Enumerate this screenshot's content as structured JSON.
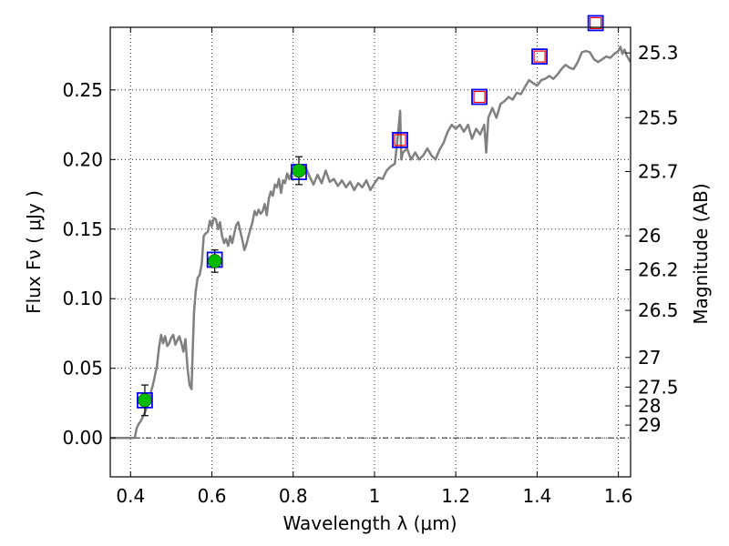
{
  "chart_data": {
    "type": "scatter",
    "title": "",
    "xlabel": "Wavelength  λ (μm)",
    "ylabel_left": "Flux  Fν  ( μJy )",
    "ylabel_right": "Magnitude (AB)",
    "xlim": [
      0.35,
      1.63
    ],
    "ylim": [
      -0.028,
      0.295
    ],
    "grid": true,
    "x_ticks": [
      0.4,
      0.6,
      0.8,
      1.0,
      1.2,
      1.4,
      1.6
    ],
    "x_tick_labels": [
      "0.4",
      "0.6",
      "0.8",
      "1",
      "1.2",
      "1.4",
      "1.6"
    ],
    "y_ticks": [
      0.0,
      0.05,
      0.1,
      0.15,
      0.2,
      0.25
    ],
    "y_tick_labels": [
      "0.00",
      "0.05",
      "0.10",
      "0.15",
      "0.20",
      "0.25"
    ],
    "right_ticks": [
      {
        "label": "25.3",
        "flux": 0.2766
      },
      {
        "label": "25.5",
        "flux": 0.2301
      },
      {
        "label": "25.7",
        "flux": 0.1914
      },
      {
        "label": "26",
        "flux": 0.1452
      },
      {
        "label": "26.2",
        "flux": 0.1208
      },
      {
        "label": "26.5",
        "flux": 0.0916
      },
      {
        "label": "27",
        "flux": 0.0578
      },
      {
        "label": "27.5",
        "flux": 0.0365
      },
      {
        "label": "28",
        "flux": 0.023
      },
      {
        "label": "29",
        "flux": 0.0092
      }
    ],
    "series": [
      {
        "kind": "model-spectrum",
        "color": "#808080",
        "points": [
          [
            0.35,
            0.0
          ],
          [
            0.41,
            0.0
          ],
          [
            0.415,
            0.007
          ],
          [
            0.42,
            0.01
          ],
          [
            0.425,
            0.012
          ],
          [
            0.43,
            0.015
          ],
          [
            0.435,
            0.018
          ],
          [
            0.44,
            0.022
          ],
          [
            0.445,
            0.026
          ],
          [
            0.45,
            0.033
          ],
          [
            0.455,
            0.038
          ],
          [
            0.46,
            0.045
          ],
          [
            0.465,
            0.052
          ],
          [
            0.47,
            0.065
          ],
          [
            0.475,
            0.074
          ],
          [
            0.48,
            0.068
          ],
          [
            0.485,
            0.073
          ],
          [
            0.49,
            0.066
          ],
          [
            0.495,
            0.068
          ],
          [
            0.5,
            0.072
          ],
          [
            0.505,
            0.074
          ],
          [
            0.51,
            0.067
          ],
          [
            0.515,
            0.07
          ],
          [
            0.52,
            0.073
          ],
          [
            0.525,
            0.068
          ],
          [
            0.53,
            0.062
          ],
          [
            0.535,
            0.071
          ],
          [
            0.54,
            0.05
          ],
          [
            0.545,
            0.038
          ],
          [
            0.55,
            0.035
          ],
          [
            0.553,
            0.065
          ],
          [
            0.556,
            0.09
          ],
          [
            0.56,
            0.105
          ],
          [
            0.565,
            0.115
          ],
          [
            0.57,
            0.117
          ],
          [
            0.575,
            0.125
          ],
          [
            0.58,
            0.145
          ],
          [
            0.585,
            0.147
          ],
          [
            0.59,
            0.148
          ],
          [
            0.595,
            0.156
          ],
          [
            0.6,
            0.152
          ],
          [
            0.605,
            0.158
          ],
          [
            0.61,
            0.157
          ],
          [
            0.615,
            0.15
          ],
          [
            0.62,
            0.155
          ],
          [
            0.625,
            0.145
          ],
          [
            0.63,
            0.14
          ],
          [
            0.635,
            0.143
          ],
          [
            0.64,
            0.138
          ],
          [
            0.645,
            0.145
          ],
          [
            0.65,
            0.14
          ],
          [
            0.655,
            0.147
          ],
          [
            0.66,
            0.153
          ],
          [
            0.665,
            0.155
          ],
          [
            0.67,
            0.148
          ],
          [
            0.675,
            0.142
          ],
          [
            0.68,
            0.135
          ],
          [
            0.685,
            0.139
          ],
          [
            0.69,
            0.145
          ],
          [
            0.695,
            0.15
          ],
          [
            0.7,
            0.155
          ],
          [
            0.705,
            0.163
          ],
          [
            0.71,
            0.16
          ],
          [
            0.715,
            0.164
          ],
          [
            0.72,
            0.161
          ],
          [
            0.725,
            0.163
          ],
          [
            0.73,
            0.168
          ],
          [
            0.735,
            0.16
          ],
          [
            0.74,
            0.172
          ],
          [
            0.745,
            0.177
          ],
          [
            0.75,
            0.174
          ],
          [
            0.755,
            0.182
          ],
          [
            0.76,
            0.18
          ],
          [
            0.765,
            0.186
          ],
          [
            0.77,
            0.176
          ],
          [
            0.775,
            0.185
          ],
          [
            0.78,
            0.183
          ],
          [
            0.785,
            0.19
          ],
          [
            0.79,
            0.186
          ],
          [
            0.8,
            0.193
          ],
          [
            0.81,
            0.19
          ],
          [
            0.82,
            0.192
          ],
          [
            0.83,
            0.195
          ],
          [
            0.84,
            0.188
          ],
          [
            0.85,
            0.182
          ],
          [
            0.86,
            0.189
          ],
          [
            0.87,
            0.183
          ],
          [
            0.88,
            0.192
          ],
          [
            0.89,
            0.184
          ],
          [
            0.9,
            0.186
          ],
          [
            0.91,
            0.181
          ],
          [
            0.92,
            0.185
          ],
          [
            0.93,
            0.18
          ],
          [
            0.94,
            0.184
          ],
          [
            0.95,
            0.178
          ],
          [
            0.96,
            0.183
          ],
          [
            0.97,
            0.18
          ],
          [
            0.98,
            0.185
          ],
          [
            0.99,
            0.178
          ],
          [
            1.0,
            0.183
          ],
          [
            1.01,
            0.187
          ],
          [
            1.02,
            0.186
          ],
          [
            1.03,
            0.192
          ],
          [
            1.04,
            0.195
          ],
          [
            1.05,
            0.197
          ],
          [
            1.055,
            0.21
          ],
          [
            1.06,
            0.225
          ],
          [
            1.063,
            0.235
          ],
          [
            1.066,
            0.2
          ],
          [
            1.07,
            0.205
          ],
          [
            1.08,
            0.208
          ],
          [
            1.09,
            0.2
          ],
          [
            1.1,
            0.205
          ],
          [
            1.11,
            0.2
          ],
          [
            1.12,
            0.203
          ],
          [
            1.13,
            0.208
          ],
          [
            1.14,
            0.203
          ],
          [
            1.15,
            0.2
          ],
          [
            1.16,
            0.207
          ],
          [
            1.17,
            0.212
          ],
          [
            1.18,
            0.22
          ],
          [
            1.19,
            0.225
          ],
          [
            1.2,
            0.222
          ],
          [
            1.21,
            0.225
          ],
          [
            1.22,
            0.22
          ],
          [
            1.23,
            0.225
          ],
          [
            1.24,
            0.215
          ],
          [
            1.25,
            0.222
          ],
          [
            1.26,
            0.218
          ],
          [
            1.27,
            0.225
          ],
          [
            1.275,
            0.205
          ],
          [
            1.28,
            0.23
          ],
          [
            1.29,
            0.237
          ],
          [
            1.3,
            0.23
          ],
          [
            1.31,
            0.24
          ],
          [
            1.32,
            0.242
          ],
          [
            1.33,
            0.245
          ],
          [
            1.34,
            0.243
          ],
          [
            1.35,
            0.248
          ],
          [
            1.36,
            0.247
          ],
          [
            1.37,
            0.252
          ],
          [
            1.38,
            0.257
          ],
          [
            1.39,
            0.255
          ],
          [
            1.4,
            0.253
          ],
          [
            1.41,
            0.257
          ],
          [
            1.42,
            0.258
          ],
          [
            1.43,
            0.26
          ],
          [
            1.44,
            0.258
          ],
          [
            1.45,
            0.261
          ],
          [
            1.46,
            0.265
          ],
          [
            1.47,
            0.268
          ],
          [
            1.48,
            0.266
          ],
          [
            1.49,
            0.265
          ],
          [
            1.5,
            0.27
          ],
          [
            1.51,
            0.277
          ],
          [
            1.52,
            0.278
          ],
          [
            1.53,
            0.277
          ],
          [
            1.54,
            0.272
          ],
          [
            1.55,
            0.27
          ],
          [
            1.56,
            0.272
          ],
          [
            1.57,
            0.274
          ],
          [
            1.58,
            0.273
          ],
          [
            1.59,
            0.276
          ],
          [
            1.6,
            0.278
          ],
          [
            1.605,
            0.281
          ],
          [
            1.61,
            0.276
          ],
          [
            1.615,
            0.279
          ],
          [
            1.62,
            0.275
          ],
          [
            1.63,
            0.27
          ]
        ]
      },
      {
        "kind": "model-photometry",
        "marker": "open-square",
        "color": "#0000ff",
        "points": [
          [
            0.435,
            0.027
          ],
          [
            0.607,
            0.128
          ],
          [
            0.814,
            0.191
          ],
          [
            1.063,
            0.214
          ],
          [
            1.258,
            0.245
          ],
          [
            1.406,
            0.274
          ],
          [
            1.544,
            0.298
          ]
        ]
      },
      {
        "kind": "upper-limit-boxes",
        "marker": "open-square",
        "color": "#ff0000",
        "points": [
          [
            1.063,
            0.214
          ],
          [
            1.258,
            0.245
          ],
          [
            1.406,
            0.274
          ],
          [
            1.544,
            0.298
          ]
        ]
      },
      {
        "kind": "observed-flux",
        "marker": "filled-circle",
        "color": "#00bb00",
        "points": [
          {
            "x": 0.435,
            "y": 0.027,
            "err": 0.011
          },
          {
            "x": 0.607,
            "y": 0.127,
            "err": 0.008
          },
          {
            "x": 0.814,
            "y": 0.192,
            "err": 0.01
          }
        ]
      }
    ]
  }
}
